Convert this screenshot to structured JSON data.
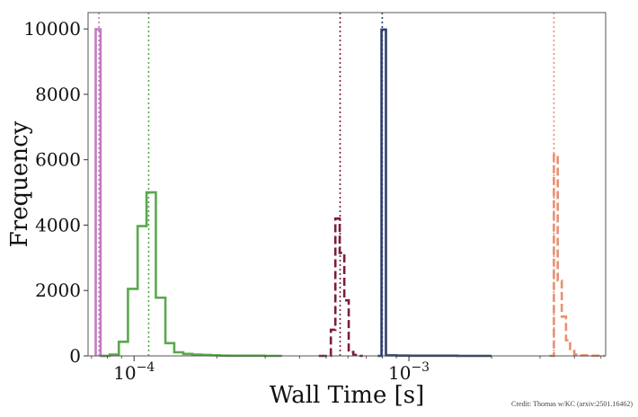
{
  "chart_data": {
    "type": "histogram",
    "xscale": "log",
    "xlabel": "Wall Time [s]",
    "ylabel": "Frequency",
    "xlim": [
      6.8e-05,
      0.0052
    ],
    "ylim": [
      0,
      10500
    ],
    "y_ticks": [
      0,
      2000,
      4000,
      6000,
      8000,
      10000
    ],
    "x_ticks": [
      {
        "value": 0.0001,
        "base": "10",
        "exp": "−4"
      },
      {
        "value": 0.001,
        "base": "10",
        "exp": "−3"
      }
    ],
    "grid": false,
    "legend": "none",
    "series": [
      {
        "color": "#c27bc0",
        "dash": "solid",
        "median": 7.45e-05,
        "bins": [
          [
            7.25e-05,
            7.55e-05,
            9990
          ],
          [
            7.55e-05,
            7.85e-05,
            0
          ]
        ]
      },
      {
        "color": "#5aa84e",
        "dash": "solid",
        "median": 0.000113,
        "bins": [
          [
            7.55e-05,
            8.15e-05,
            0
          ],
          [
            8.15e-05,
            8.8e-05,
            40
          ],
          [
            8.8e-05,
            9.5e-05,
            430
          ],
          [
            9.5e-05,
            0.000103,
            2050
          ],
          [
            0.000103,
            0.000111,
            3970
          ],
          [
            0.000111,
            0.00012,
            5000
          ],
          [
            0.00012,
            0.00013,
            1780
          ],
          [
            0.00013,
            0.00014,
            390
          ],
          [
            0.00014,
            0.000151,
            110
          ],
          [
            0.000151,
            0.000163,
            60
          ],
          [
            0.000163,
            0.000176,
            40
          ],
          [
            0.000176,
            0.00019,
            30
          ],
          [
            0.00019,
            0.000205,
            20
          ],
          [
            0.000205,
            0.000221,
            10
          ],
          [
            0.000221,
            0.0003,
            5
          ],
          [
            0.0003,
            0.000345,
            0
          ]
        ]
      },
      {
        "color": "#7a1f3a",
        "dash": "dashed",
        "median": 0.000562,
        "bins": [
          [
            0.00047,
            0.00052,
            0
          ],
          [
            0.00052,
            0.00054,
            800
          ],
          [
            0.00054,
            0.00056,
            4200
          ],
          [
            0.00056,
            0.000582,
            3150
          ],
          [
            0.000582,
            0.000604,
            1700
          ],
          [
            0.000604,
            0.000628,
            120
          ],
          [
            0.000628,
            0.000652,
            30
          ],
          [
            0.000652,
            0.00068,
            0
          ]
        ]
      },
      {
        "color": "#2d3f6b",
        "dash": "solid",
        "median": 0.0008,
        "bins": [
          [
            0.00077,
            0.000795,
            0
          ],
          [
            0.000795,
            0.000825,
            9980
          ],
          [
            0.000825,
            0.0009,
            15
          ],
          [
            0.0009,
            0.001,
            8
          ],
          [
            0.001,
            0.0015,
            5
          ],
          [
            0.0015,
            0.002,
            0
          ]
        ]
      },
      {
        "color": "#e89072",
        "dash": "dashed",
        "median": 0.00337,
        "bins": [
          [
            0.00325,
            0.00337,
            0
          ],
          [
            0.00337,
            0.00348,
            6150
          ],
          [
            0.00348,
            0.0036,
            2300
          ],
          [
            0.0036,
            0.00373,
            1200
          ],
          [
            0.00373,
            0.00386,
            480
          ],
          [
            0.00386,
            0.004,
            150
          ],
          [
            0.004,
            0.0042,
            40
          ],
          [
            0.0042,
            0.0046,
            15
          ],
          [
            0.0046,
            0.005,
            5
          ],
          [
            0.005,
            0.00515,
            0
          ]
        ]
      }
    ]
  },
  "credit": "Credit: Thomas w/KC (arxiv:2501.16462)"
}
